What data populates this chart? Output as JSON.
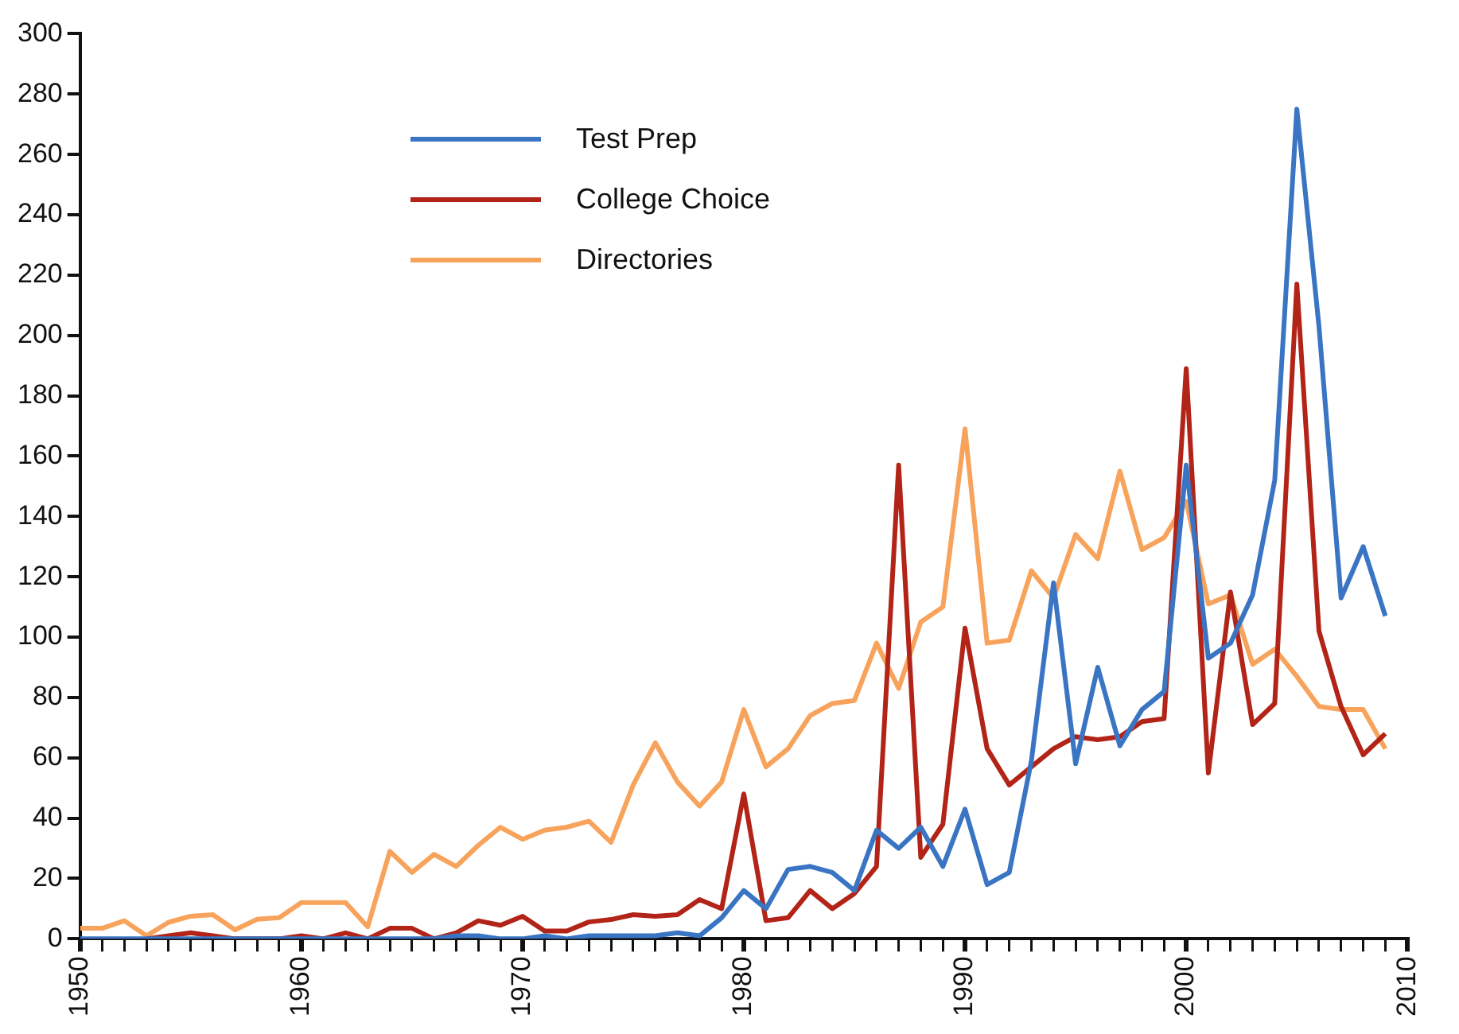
{
  "chart_data": {
    "type": "line",
    "x": [
      1950,
      1951,
      1952,
      1953,
      1954,
      1955,
      1956,
      1957,
      1958,
      1959,
      1960,
      1961,
      1962,
      1963,
      1964,
      1965,
      1966,
      1967,
      1968,
      1969,
      1970,
      1971,
      1972,
      1973,
      1974,
      1975,
      1976,
      1977,
      1978,
      1979,
      1980,
      1981,
      1982,
      1983,
      1984,
      1985,
      1986,
      1987,
      1988,
      1989,
      1990,
      1991,
      1992,
      1993,
      1994,
      1995,
      1996,
      1997,
      1998,
      1999,
      2000,
      2001,
      2002,
      2003,
      2004,
      2005,
      2006,
      2007,
      2008,
      2009
    ],
    "series": [
      {
        "name": "Test Prep",
        "color": "#3a75c4",
        "values": [
          0,
          0,
          0,
          0,
          0,
          0,
          0,
          0,
          0,
          0,
          0,
          0,
          0,
          0,
          0,
          0,
          0,
          1,
          1,
          0,
          0,
          1,
          0,
          1,
          1,
          1,
          1,
          2,
          1,
          7,
          16,
          10,
          23,
          24,
          22,
          16,
          36,
          30,
          37,
          24,
          43,
          18,
          22,
          59,
          118,
          58,
          90,
          64,
          76,
          82,
          157,
          93,
          98,
          114,
          152,
          275,
          203,
          113,
          130,
          107
        ]
      },
      {
        "name": "College Choice",
        "color": "#b22418",
        "values": [
          null,
          null,
          null,
          0,
          1,
          2,
          1,
          0,
          0,
          0,
          1,
          0,
          2,
          0,
          3.5,
          3.5,
          0,
          2,
          6,
          4.5,
          7.5,
          2.6,
          2.6,
          5.6,
          6.4,
          8,
          7.5,
          8,
          13,
          10,
          48,
          6,
          7,
          16,
          10,
          15,
          24,
          157,
          27,
          38,
          103,
          63,
          51,
          57,
          63,
          67,
          66,
          67,
          72,
          73,
          189,
          55,
          115,
          71,
          78,
          217,
          102,
          77,
          61,
          68
        ]
      },
      {
        "name": "Directories",
        "color": "#f8a35c",
        "values": [
          3.5,
          3.5,
          6,
          1,
          5.5,
          7.5,
          8,
          3,
          6.5,
          7,
          12,
          12,
          12,
          4,
          29,
          22,
          28,
          24,
          31,
          37,
          33,
          36,
          37,
          39,
          32,
          51,
          65,
          52,
          44,
          52,
          76,
          57,
          63,
          74,
          78,
          79,
          98,
          83,
          105,
          110,
          169,
          98,
          99,
          122,
          113,
          134,
          126,
          155,
          129,
          133,
          145,
          111,
          114,
          91,
          96,
          87,
          77,
          76,
          76,
          63
        ]
      }
    ],
    "xlim": [
      1950,
      2010
    ],
    "xticks": [
      1950,
      {
        "value": 1951,
        "label": null
      },
      {
        "value": 1952,
        "label": null
      },
      {
        "value": 1953,
        "label": null
      },
      {
        "value": 1954,
        "label": null
      },
      {
        "value": 1955,
        "label": null
      },
      {
        "value": 1956,
        "label": null
      },
      {
        "value": 1957,
        "label": null
      },
      {
        "value": 1958,
        "label": null
      },
      {
        "value": 1959,
        "label": null
      },
      1960,
      {
        "value": 1961,
        "label": null
      },
      {
        "value": 1962,
        "label": null
      },
      {
        "value": 1963,
        "label": null
      },
      {
        "value": 1964,
        "label": null
      },
      {
        "value": 1965,
        "label": null
      },
      {
        "value": 1966,
        "label": null
      },
      {
        "value": 1967,
        "label": null
      },
      {
        "value": 1968,
        "label": null
      },
      {
        "value": 1969,
        "label": null
      },
      1970,
      {
        "value": 1971,
        "label": null
      },
      {
        "value": 1972,
        "label": null
      },
      {
        "value": 1973,
        "label": null
      },
      {
        "value": 1974,
        "label": null
      },
      {
        "value": 1975,
        "label": null
      },
      {
        "value": 1976,
        "label": null
      },
      {
        "value": 1977,
        "label": null
      },
      {
        "value": 1978,
        "label": null
      },
      {
        "value": 1979,
        "label": null
      },
      1980,
      {
        "value": 1981,
        "label": null
      },
      {
        "value": 1982,
        "label": null
      },
      {
        "value": 1983,
        "label": null
      },
      {
        "value": 1984,
        "label": null
      },
      {
        "value": 1985,
        "label": null
      },
      {
        "value": 1986,
        "label": null
      },
      {
        "value": 1987,
        "label": null
      },
      {
        "value": 1988,
        "label": null
      },
      {
        "value": 1989,
        "label": null
      },
      1990,
      {
        "value": 1991,
        "label": null
      },
      {
        "value": 1992,
        "label": null
      },
      {
        "value": 1993,
        "label": null
      },
      {
        "value": 1994,
        "label": null
      },
      {
        "value": 1995,
        "label": null
      },
      {
        "value": 1996,
        "label": null
      },
      {
        "value": 1997,
        "label": null
      },
      {
        "value": 1998,
        "label": null
      },
      {
        "value": 1999,
        "label": null
      },
      2000,
      {
        "value": 2001,
        "label": null
      },
      {
        "value": 2002,
        "label": null
      },
      {
        "value": 2003,
        "label": null
      },
      {
        "value": 2004,
        "label": null
      },
      {
        "value": 2005,
        "label": null
      },
      {
        "value": 2006,
        "label": null
      },
      {
        "value": 2007,
        "label": null
      },
      {
        "value": 2008,
        "label": null
      },
      {
        "value": 2009,
        "label": null
      },
      2010
    ],
    "ylim": [
      0,
      300
    ],
    "yticks": [
      0,
      20,
      40,
      60,
      80,
      100,
      120,
      140,
      160,
      180,
      200,
      220,
      240,
      260,
      280,
      300
    ],
    "grid": false,
    "legend": "top left",
    "marker": "none",
    "line_style": "solid"
  }
}
